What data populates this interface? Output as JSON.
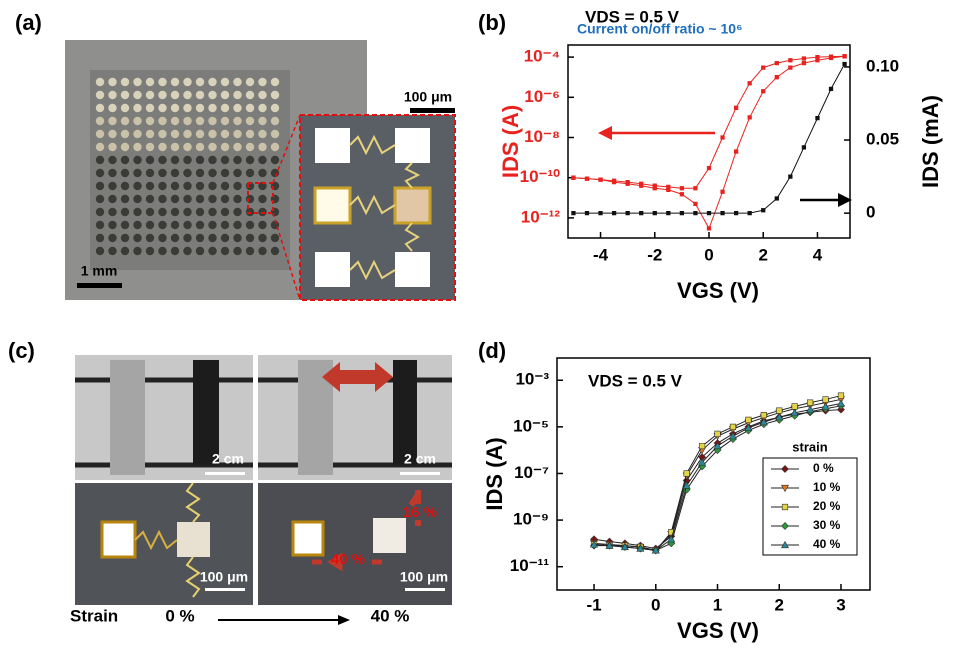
{
  "chart_data": [
    {
      "type": "line",
      "panel_label": "(b)",
      "title": "VDS = 0.5 V",
      "annotation": "Current on/off ratio ~ 10⁶",
      "x_label": "VGS (V)",
      "y_label": "IDS (A)",
      "y2_label": "IDS (mA)",
      "y_axis_color": "#e8231f",
      "x": [
        -5,
        -4.5,
        -4,
        -3.5,
        -3,
        -2.5,
        -2,
        -1.5,
        -1,
        -0.5,
        0,
        0.5,
        1,
        1.5,
        2,
        2.5,
        3,
        3.5,
        4,
        4.5,
        5
      ],
      "xlim": [
        -5.2,
        5.2
      ],
      "xticks": [
        -4,
        -2,
        0,
        2,
        4
      ],
      "ylog": true,
      "ylim": [
        1e-13,
        0.0004
      ],
      "yticks": [
        {
          "value": 0.0001,
          "label": "10⁻⁴"
        },
        {
          "value": 1e-06,
          "label": "10⁻⁶"
        },
        {
          "value": 1e-08,
          "label": "10⁻⁸"
        },
        {
          "value": 1e-10,
          "label": "10⁻¹⁰"
        },
        {
          "value": 1e-12,
          "label": "10⁻¹²"
        }
      ],
      "y2lim": [
        -0.017,
        0.115
      ],
      "y2ticks": [
        0,
        0.05,
        {
          "value": 0.1,
          "label": "0.10"
        }
      ],
      "series": [
        {
          "color": "#e8231f",
          "marker": "square",
          "values": [
            1e-10,
            9e-11,
            8e-11,
            7e-11,
            6e-11,
            5e-11,
            4e-11,
            3.5e-11,
            3e-11,
            3e-11,
            3e-10,
            1e-08,
            3e-07,
            5e-06,
            3e-05,
            5e-05,
            7e-05,
            8.5e-05,
            0.0001,
            0.000105,
            0.00011
          ]
        },
        {
          "color": "#e8231f",
          "marker": "square",
          "values": [
            1e-10,
            9e-11,
            8e-11,
            6e-11,
            5e-11,
            4e-11,
            3e-11,
            2.5e-11,
            1.5e-11,
            5e-12,
            3e-13,
            2e-11,
            2e-09,
            1e-07,
            2e-06,
            1e-05,
            3e-05,
            5e-05,
            7e-05,
            9e-05,
            0.00011
          ]
        },
        {
          "color": "#111111",
          "marker": "square",
          "axis": "y2",
          "values": [
            0,
            0,
            0,
            0,
            0,
            0,
            0,
            0,
            0,
            0,
            0,
            0,
            0,
            0,
            0.002,
            0.01,
            0.025,
            0.045,
            0.065,
            0.085,
            0.102
          ]
        }
      ]
    },
    {
      "type": "line",
      "panel_label": "(d)",
      "annotation": "VDS = 0.5 V",
      "x_label": "VGS (V)",
      "y_label": "IDS (A)",
      "x": [
        -1,
        -0.75,
        -0.5,
        -0.25,
        0,
        0.25,
        0.5,
        0.75,
        1,
        1.25,
        1.5,
        1.75,
        2,
        2.25,
        2.5,
        2.75,
        3
      ],
      "xlim": [
        -1.6,
        3.47
      ],
      "xticks": [
        -1,
        0,
        1,
        2,
        3
      ],
      "ylog": true,
      "ylim": [
        1e-12,
        0.009
      ],
      "yticks": [
        {
          "value": 0.001,
          "label": "10⁻³"
        },
        {
          "value": 1e-05,
          "label": "10⁻⁵"
        },
        {
          "value": 1e-07,
          "label": "10⁻⁷"
        },
        {
          "value": 1e-09,
          "label": "10⁻⁹"
        },
        {
          "value": 1e-11,
          "label": "10⁻¹¹"
        }
      ],
      "legend": "lower right",
      "legend_title": "strain",
      "series": [
        {
          "name": "0 %",
          "color": "#7a1414",
          "marker": "diamond",
          "values": [
            1.5e-10,
            1.2e-10,
            1e-10,
            8e-11,
            6e-11,
            2e-10,
            5e-08,
            5e-07,
            2e-06,
            5e-06,
            1e-05,
            1.8e-05,
            2.6e-05,
            3.5e-05,
            4.2e-05,
            5e-05,
            5.5e-05
          ]
        },
        {
          "name": "10 %",
          "color": "#e07a20",
          "marker": "triangle-down",
          "values": [
            1e-10,
            9e-11,
            8e-11,
            7e-11,
            5e-11,
            2.5e-10,
            8e-08,
            1e-06,
            4e-06,
            8e-06,
            1.5e-05,
            2.5e-05,
            4e-05,
            6e-05,
            8e-05,
            0.00011,
            0.00015
          ]
        },
        {
          "name": "20 %",
          "color": "#e2d445",
          "marker": "square",
          "values": [
            9e-11,
            8e-11,
            8e-11,
            7e-11,
            5e-11,
            3e-10,
            1e-07,
            1.5e-06,
            5e-06,
            1e-05,
            2e-05,
            3.2e-05,
            5e-05,
            7.5e-05,
            0.00011,
            0.00015,
            0.00022
          ]
        },
        {
          "name": "30 %",
          "color": "#2a9a3a",
          "marker": "diamond",
          "values": [
            8e-11,
            8e-11,
            7e-11,
            6e-11,
            5e-11,
            1e-10,
            2e-08,
            2e-07,
            1e-06,
            3e-06,
            7e-06,
            1.3e-05,
            2e-05,
            3e-05,
            4.5e-05,
            6e-05,
            8e-05
          ]
        },
        {
          "name": "40 %",
          "color": "#2a8a9a",
          "marker": "triangle-up",
          "values": [
            9e-11,
            8e-11,
            7e-11,
            6e-11,
            5e-11,
            1.5e-10,
            3e-08,
            3e-07,
            1.5e-06,
            4e-06,
            9e-06,
            1.6e-05,
            2.6e-05,
            4e-05,
            5.5e-05,
            7.5e-05,
            0.0001
          ]
        }
      ]
    }
  ],
  "photos": {
    "a": {
      "panel_label": "(a)",
      "scale_large": "1 mm",
      "scale_small": "100 μm"
    },
    "c": {
      "panel_label": "(c)",
      "scale_top_left": "2 cm",
      "scale_top_right": "2 cm",
      "scale_bottom_left": "100 μm",
      "scale_bottom_right": "100 μm",
      "strain_vertical": "16 %",
      "strain_horizontal": "40 %",
      "strain_label": "Strain",
      "strain_start": "0 %",
      "strain_end": "40 %"
    }
  }
}
